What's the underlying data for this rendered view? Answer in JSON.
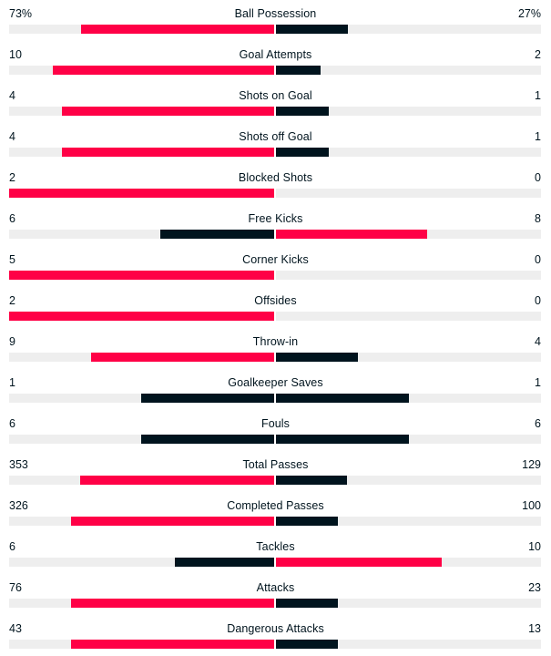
{
  "colors": {
    "winner": "#ff0046",
    "loser": "#00141e",
    "track": "#eeeeee",
    "text": "#00141e"
  },
  "stats": [
    {
      "label": "Ball Possession",
      "home": "73%",
      "away": "27%",
      "home_value": 73,
      "away_value": 27
    },
    {
      "label": "Goal Attempts",
      "home": "10",
      "away": "2",
      "home_value": 10,
      "away_value": 2
    },
    {
      "label": "Shots on Goal",
      "home": "4",
      "away": "1",
      "home_value": 4,
      "away_value": 1
    },
    {
      "label": "Shots off Goal",
      "home": "4",
      "away": "1",
      "home_value": 4,
      "away_value": 1
    },
    {
      "label": "Blocked Shots",
      "home": "2",
      "away": "0",
      "home_value": 2,
      "away_value": 0
    },
    {
      "label": "Free Kicks",
      "home": "6",
      "away": "8",
      "home_value": 6,
      "away_value": 8
    },
    {
      "label": "Corner Kicks",
      "home": "5",
      "away": "0",
      "home_value": 5,
      "away_value": 0
    },
    {
      "label": "Offsides",
      "home": "2",
      "away": "0",
      "home_value": 2,
      "away_value": 0
    },
    {
      "label": "Throw-in",
      "home": "9",
      "away": "4",
      "home_value": 9,
      "away_value": 4
    },
    {
      "label": "Goalkeeper Saves",
      "home": "1",
      "away": "1",
      "home_value": 1,
      "away_value": 1
    },
    {
      "label": "Fouls",
      "home": "6",
      "away": "6",
      "home_value": 6,
      "away_value": 6
    },
    {
      "label": "Total Passes",
      "home": "353",
      "away": "129",
      "home_value": 353,
      "away_value": 129
    },
    {
      "label": "Completed Passes",
      "home": "326",
      "away": "100",
      "home_value": 326,
      "away_value": 100
    },
    {
      "label": "Tackles",
      "home": "6",
      "away": "10",
      "home_value": 6,
      "away_value": 10
    },
    {
      "label": "Attacks",
      "home": "76",
      "away": "23",
      "home_value": 76,
      "away_value": 23
    },
    {
      "label": "Dangerous Attacks",
      "home": "43",
      "away": "13",
      "home_value": 43,
      "away_value": 13
    }
  ]
}
